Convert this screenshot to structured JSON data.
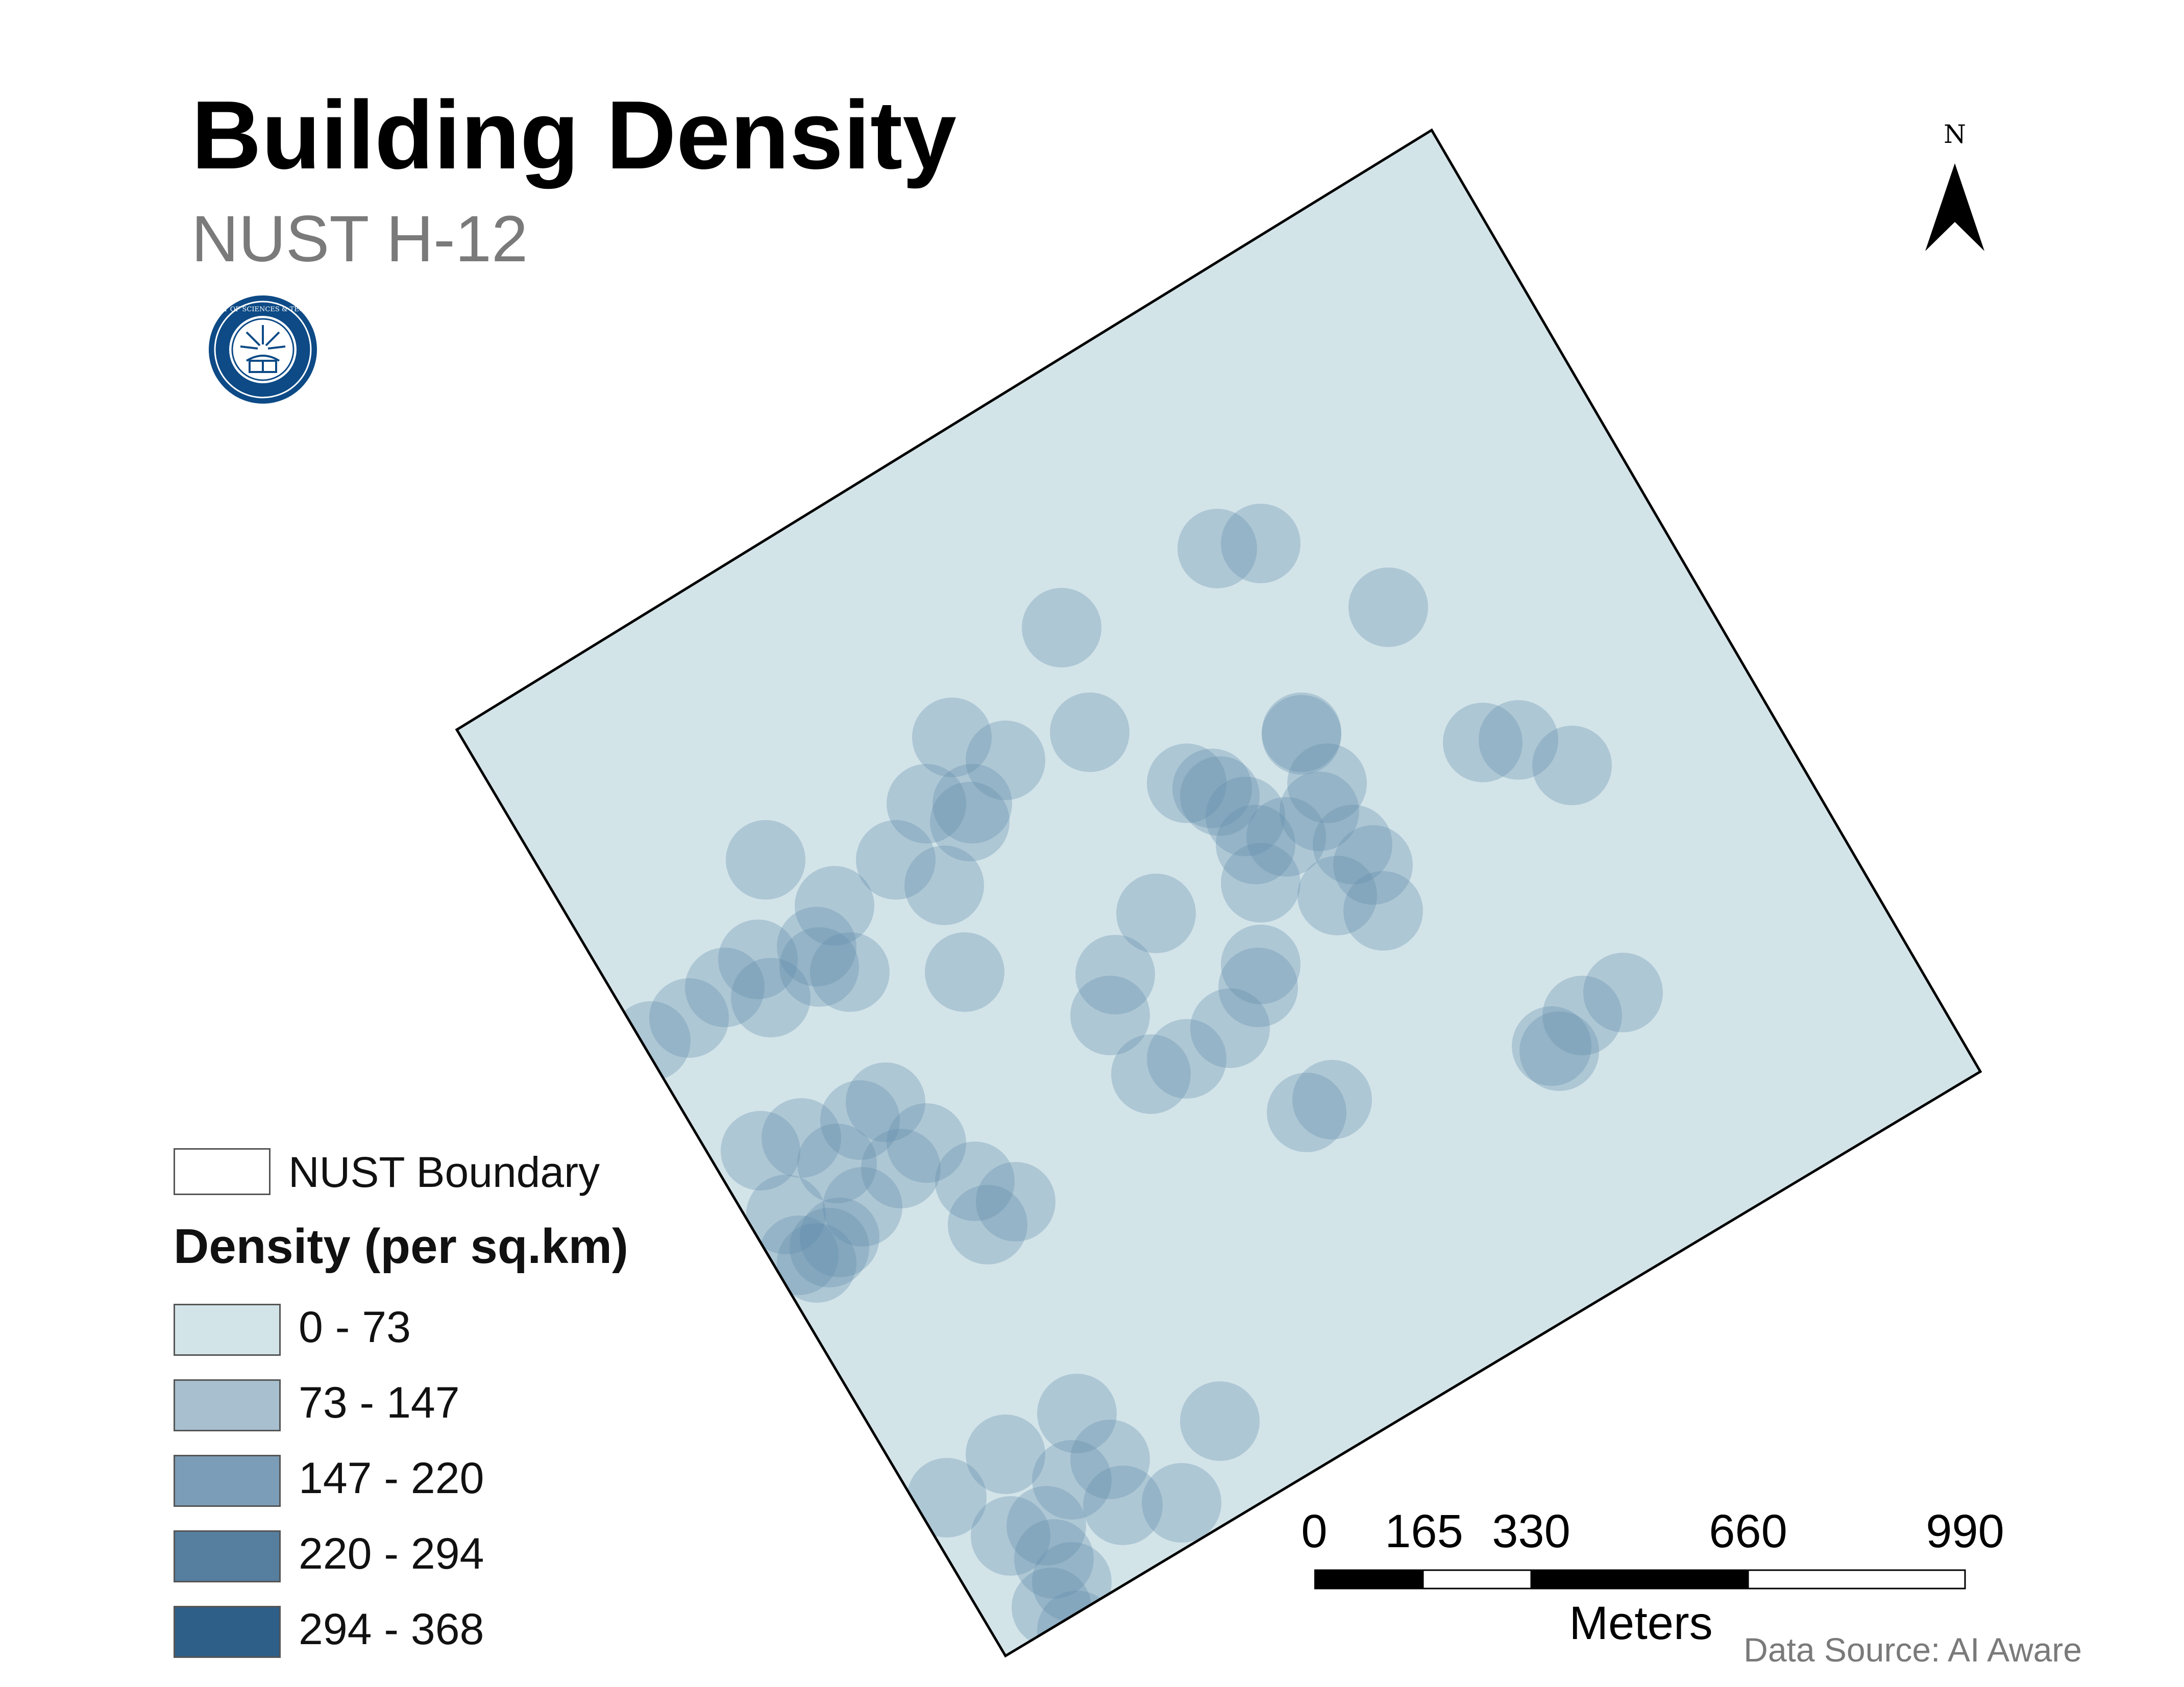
{
  "title": "Building Density",
  "subtitle": "NUST H-12",
  "north_arrow": {
    "label": "N",
    "icon": "north-arrow-icon"
  },
  "logo": {
    "icon": "nust-seal-icon",
    "text": "NATIONAL UNIVERSITY OF SCIENCES & TECHNOLOGY · PAKISTAN",
    "color": "#0d4a86"
  },
  "legend": {
    "boundary_label": "NUST Boundary",
    "density_heading": "Density (per sq.km)",
    "classes": [
      {
        "label": "0 - 73",
        "min": 0,
        "max": 73,
        "color": "#d3e4e9"
      },
      {
        "label": "73 - 147",
        "min": 73,
        "max": 147,
        "color": "#a7bfce"
      },
      {
        "label": "147 - 220",
        "min": 147,
        "max": 220,
        "color": "#7c9db7"
      },
      {
        "label": "220 - 294",
        "min": 220,
        "max": 294,
        "color": "#557e9f"
      },
      {
        "label": "294 - 368",
        "min": 294,
        "max": 368,
        "color": "#2e5f88"
      }
    ]
  },
  "scale_bar": {
    "ticks": [
      "0",
      "165",
      "330",
      "660",
      "990"
    ],
    "tick_values": [
      0,
      165,
      330,
      660,
      990
    ],
    "unit": "Meters"
  },
  "credit": "Data Source: AI Aware",
  "colors": {
    "background": "#d3e4e9",
    "boundary": "#000000"
  }
}
